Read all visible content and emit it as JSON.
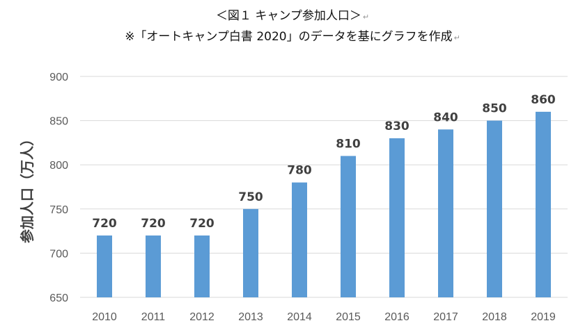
{
  "header": {
    "title": "＜図１ キャンプ参加人口＞",
    "subtitle": "※「オートキャンプ白書 2020」のデータを基にグラフを作成",
    "return_mark": "↵"
  },
  "chart_data": {
    "type": "bar",
    "title": "＜図１ キャンプ参加人口＞",
    "xlabel": "",
    "ylabel": "参加人口（万人）",
    "categories": [
      "2010",
      "2011",
      "2012",
      "2013",
      "2014",
      "2015",
      "2016",
      "2017",
      "2018",
      "2019"
    ],
    "values": [
      720,
      720,
      720,
      750,
      780,
      810,
      830,
      840,
      850,
      860
    ],
    "ylim": [
      650,
      900
    ],
    "yticks": [
      650,
      700,
      750,
      800,
      850,
      900
    ],
    "grid": true,
    "bar_color": "#5b9bd5",
    "data_labels": true
  }
}
